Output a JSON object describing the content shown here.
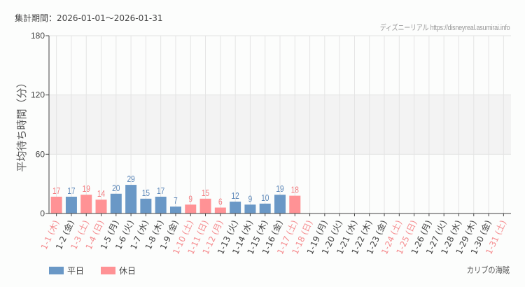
{
  "header": {
    "period": "集計期間：2026-01-01～2026-01-31",
    "credit": "ディズニーリアル https://disneyreal.asumirai.info"
  },
  "legend": {
    "weekday": "平日",
    "holiday": "休日"
  },
  "attraction": "カリブの海賊",
  "colors": {
    "weekday": "#6a98c6",
    "holiday": "#ff9295",
    "weekday_label": "#5a86b8",
    "holiday_label": "#f27a7e",
    "weekday_tick": "#444444",
    "holiday_tick": "#f58c8f"
  },
  "chart_data": {
    "type": "bar",
    "title": "",
    "xlabel": "",
    "ylabel": "平均待ち時間（分）",
    "ylim": [
      0,
      180
    ],
    "yticks": [
      0,
      60,
      120,
      180
    ],
    "grid": true,
    "shaded_band": [
      60,
      120
    ],
    "legend_position": "bottom-left",
    "categories": [
      "1-1 (木)",
      "1-2 (金)",
      "1-3 (土)",
      "1-4 (日)",
      "1-5 (月)",
      "1-6 (火)",
      "1-7 (水)",
      "1-8 (木)",
      "1-9 (金)",
      "1-10 (土)",
      "1-11 (日)",
      "1-12 (月)",
      "1-13 (火)",
      "1-14 (水)",
      "1-15 (木)",
      "1-16 (金)",
      "1-17 (土)",
      "1-18 (日)",
      "1-19 (月)",
      "1-20 (火)",
      "1-21 (水)",
      "1-22 (木)",
      "1-23 (金)",
      "1-24 (土)",
      "1-25 (日)",
      "1-26 (月)",
      "1-27 (火)",
      "1-28 (水)",
      "1-29 (木)",
      "1-30 (金)",
      "1-31 (土)"
    ],
    "day_type": [
      "holiday",
      "weekday",
      "holiday",
      "holiday",
      "weekday",
      "weekday",
      "weekday",
      "weekday",
      "weekday",
      "holiday",
      "holiday",
      "holiday",
      "weekday",
      "weekday",
      "weekday",
      "weekday",
      "holiday",
      "holiday",
      "weekday",
      "weekday",
      "weekday",
      "weekday",
      "weekday",
      "holiday",
      "holiday",
      "weekday",
      "weekday",
      "weekday",
      "weekday",
      "weekday",
      "holiday"
    ],
    "values": [
      17,
      17,
      19,
      14,
      20,
      29,
      15,
      17,
      7,
      9,
      15,
      6,
      12,
      9,
      10,
      19,
      18,
      null,
      null,
      null,
      null,
      null,
      null,
      null,
      null,
      null,
      null,
      null,
      null,
      null,
      null
    ],
    "series": [
      {
        "name": "平日",
        "values": [
          null,
          17,
          null,
          null,
          20,
          29,
          15,
          17,
          7,
          null,
          null,
          null,
          12,
          9,
          10,
          19,
          null,
          null,
          null,
          null,
          null,
          null,
          null,
          null,
          null,
          null,
          null,
          null,
          null,
          null,
          null
        ]
      },
      {
        "name": "休日",
        "values": [
          17,
          null,
          19,
          14,
          null,
          null,
          null,
          null,
          null,
          9,
          15,
          6,
          null,
          null,
          null,
          null,
          18,
          null,
          null,
          null,
          null,
          null,
          null,
          null,
          null,
          null,
          null,
          null,
          null,
          null,
          null
        ]
      }
    ]
  }
}
